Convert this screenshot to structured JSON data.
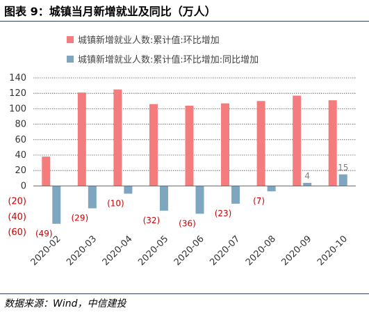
{
  "header": {
    "title": "图表 9：城镇当月新增就业及同比（万人）"
  },
  "footer": {
    "source": "数据来源：Wind，中信建投"
  },
  "chart_data": {
    "type": "bar",
    "categories": [
      "2020-02",
      "2020-03",
      "2020-04",
      "2020-05",
      "2020-06",
      "2020-07",
      "2020-08",
      "2020-09",
      "2020-10"
    ],
    "series": [
      {
        "name": "城镇新增就业人数:累计值:环比增加",
        "color": "#f47c7c",
        "values": [
          38,
          121,
          125,
          106,
          104,
          107,
          110,
          117,
          111
        ]
      },
      {
        "name": "城镇新增就业人数:累计值:环比增加:同比增加",
        "color": "#7fa6c0",
        "values": [
          -49,
          -29,
          -10,
          -32,
          -36,
          -23,
          -7,
          4,
          15
        ]
      }
    ],
    "data_labels": {
      "series_index": 1,
      "labels": [
        "(49)",
        "(29)",
        "(10)",
        "(32)",
        "(36)",
        "(23)",
        "(7)",
        "4",
        "15"
      ],
      "negative_color": "#cc0000",
      "positive_color": "#7f7f7f"
    },
    "yticks": [
      "140",
      "120",
      "100",
      "80",
      "60",
      "40",
      "20",
      "0",
      "(20)",
      "(40)",
      "(60)"
    ],
    "ylim": [
      -60,
      140
    ],
    "grid": true,
    "legend_position": "top"
  }
}
